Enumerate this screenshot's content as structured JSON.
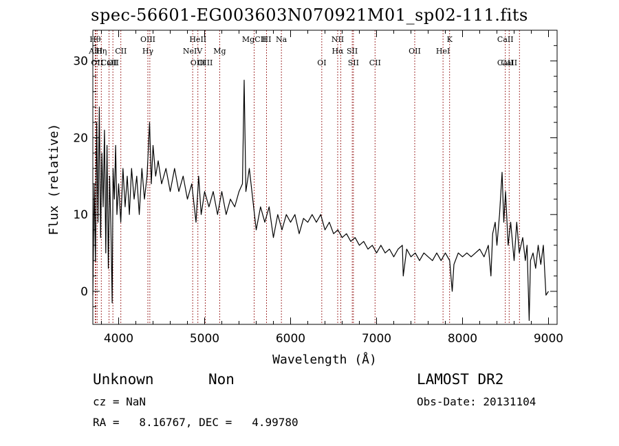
{
  "chart_data": {
    "type": "line",
    "title": "spec-56601-EG003603N070921M01_sp02-111.fits",
    "xlabel": "Wavelength (Å)",
    "ylabel": "Flux (relative)",
    "xlim": [
      3700,
      9100
    ],
    "ylim": [
      -4.3,
      34
    ],
    "x_ticks": [
      4000,
      5000,
      6000,
      7000,
      8000,
      9000
    ],
    "y_ticks": [
      0,
      10,
      20,
      30
    ],
    "line_color": "#000000",
    "marker_color": "#8b0000",
    "series": [
      {
        "values": [
          [
            3700,
            -0.5
          ],
          [
            3715,
            14
          ],
          [
            3730,
            4
          ],
          [
            3745,
            22
          ],
          [
            3760,
            9
          ],
          [
            3775,
            24
          ],
          [
            3790,
            7
          ],
          [
            3805,
            18
          ],
          [
            3820,
            11
          ],
          [
            3835,
            21
          ],
          [
            3850,
            5
          ],
          [
            3865,
            19
          ],
          [
            3880,
            3
          ],
          [
            3895,
            15
          ],
          [
            3910,
            8
          ],
          [
            3925,
            -1.5
          ],
          [
            3935,
            16
          ],
          [
            3950,
            12
          ],
          [
            3965,
            19
          ],
          [
            3980,
            10
          ],
          [
            4000,
            14
          ],
          [
            4025,
            9
          ],
          [
            4050,
            16
          ],
          [
            4075,
            11
          ],
          [
            4100,
            15
          ],
          [
            4125,
            10
          ],
          [
            4150,
            16
          ],
          [
            4180,
            12
          ],
          [
            4210,
            15
          ],
          [
            4240,
            10
          ],
          [
            4270,
            16
          ],
          [
            4300,
            12
          ],
          [
            4330,
            15
          ],
          [
            4360,
            22
          ],
          [
            4380,
            14
          ],
          [
            4400,
            19
          ],
          [
            4430,
            15
          ],
          [
            4460,
            17
          ],
          [
            4500,
            14
          ],
          [
            4550,
            16
          ],
          [
            4600,
            13
          ],
          [
            4650,
            16
          ],
          [
            4700,
            13
          ],
          [
            4750,
            15
          ],
          [
            4800,
            12
          ],
          [
            4850,
            14
          ],
          [
            4900,
            9
          ],
          [
            4930,
            15
          ],
          [
            4960,
            10
          ],
          [
            5000,
            13
          ],
          [
            5050,
            11
          ],
          [
            5100,
            13
          ],
          [
            5150,
            10
          ],
          [
            5200,
            13
          ],
          [
            5250,
            10
          ],
          [
            5300,
            12
          ],
          [
            5350,
            11
          ],
          [
            5400,
            13
          ],
          [
            5440,
            14
          ],
          [
            5460,
            27.5
          ],
          [
            5480,
            13
          ],
          [
            5520,
            16
          ],
          [
            5560,
            12
          ],
          [
            5600,
            8
          ],
          [
            5650,
            11
          ],
          [
            5700,
            9
          ],
          [
            5750,
            11
          ],
          [
            5800,
            7
          ],
          [
            5850,
            10
          ],
          [
            5900,
            8
          ],
          [
            5950,
            10
          ],
          [
            6000,
            9
          ],
          [
            6050,
            10
          ],
          [
            6100,
            7.5
          ],
          [
            6150,
            9.5
          ],
          [
            6200,
            9
          ],
          [
            6250,
            10
          ],
          [
            6300,
            9
          ],
          [
            6350,
            10
          ],
          [
            6400,
            8
          ],
          [
            6450,
            9
          ],
          [
            6500,
            7.5
          ],
          [
            6550,
            8
          ],
          [
            6600,
            7
          ],
          [
            6650,
            7.5
          ],
          [
            6700,
            6.5
          ],
          [
            6750,
            7
          ],
          [
            6800,
            6
          ],
          [
            6850,
            6.5
          ],
          [
            6900,
            5.5
          ],
          [
            6950,
            6
          ],
          [
            7000,
            5
          ],
          [
            7050,
            6
          ],
          [
            7100,
            5
          ],
          [
            7150,
            5.5
          ],
          [
            7200,
            4.5
          ],
          [
            7250,
            5.5
          ],
          [
            7300,
            6
          ],
          [
            7310,
            2
          ],
          [
            7350,
            5.5
          ],
          [
            7400,
            4.5
          ],
          [
            7450,
            5
          ],
          [
            7500,
            4
          ],
          [
            7550,
            5
          ],
          [
            7600,
            4.5
          ],
          [
            7650,
            4
          ],
          [
            7700,
            5
          ],
          [
            7750,
            4
          ],
          [
            7800,
            5
          ],
          [
            7850,
            4
          ],
          [
            7880,
            0
          ],
          [
            7900,
            3.5
          ],
          [
            7950,
            5
          ],
          [
            8000,
            4.5
          ],
          [
            8050,
            5
          ],
          [
            8100,
            4.5
          ],
          [
            8150,
            5
          ],
          [
            8200,
            5.5
          ],
          [
            8250,
            4.5
          ],
          [
            8300,
            6
          ],
          [
            8330,
            2
          ],
          [
            8350,
            7.5
          ],
          [
            8380,
            9
          ],
          [
            8400,
            6
          ],
          [
            8430,
            10
          ],
          [
            8460,
            15.5
          ],
          [
            8480,
            9
          ],
          [
            8500,
            13
          ],
          [
            8530,
            6
          ],
          [
            8560,
            9
          ],
          [
            8600,
            4
          ],
          [
            8630,
            9
          ],
          [
            8660,
            5
          ],
          [
            8700,
            7
          ],
          [
            8730,
            4
          ],
          [
            8750,
            6
          ],
          [
            8775,
            -3.8
          ],
          [
            8790,
            4
          ],
          [
            8820,
            5
          ],
          [
            8850,
            3
          ],
          [
            8880,
            6
          ],
          [
            8910,
            3.5
          ],
          [
            8940,
            6
          ],
          [
            8970,
            -0.5
          ],
          [
            9000,
            0
          ]
        ]
      }
    ],
    "line_markers": [
      {
        "wavelength": 3727,
        "top": "Hθ",
        "bottom": ""
      },
      {
        "wavelength": 3734,
        "top": "",
        "bottom": "AlII"
      },
      {
        "wavelength": 3750,
        "top": "",
        "bottom": "OII"
      },
      {
        "wavelength": 3798,
        "top": "",
        "bottom": "Hη"
      },
      {
        "wavelength": 3889,
        "top": "",
        "bottom": "CaII"
      },
      {
        "wavelength": 3933,
        "top": "",
        "bottom": "OII"
      },
      {
        "wavelength": 4026,
        "top": "",
        "bottom": "CII"
      },
      {
        "wavelength": 4340,
        "top": "OIII",
        "bottom": "Hγ"
      },
      {
        "wavelength": 4363,
        "top": "",
        "bottom": ""
      },
      {
        "wavelength": 4861,
        "top": "",
        "bottom": "NeIV"
      },
      {
        "wavelength": 4922,
        "top": "HeII",
        "bottom": "OIII"
      },
      {
        "wavelength": 5007,
        "top": "",
        "bottom": "OIII"
      },
      {
        "wavelength": 5175,
        "top": "",
        "bottom": "Mg"
      },
      {
        "wavelength": 5577,
        "top": "MgCII",
        "bottom": ""
      },
      {
        "wavelength": 5720,
        "top": "HI",
        "bottom": ""
      },
      {
        "wavelength": 5893,
        "top": "Na",
        "bottom": ""
      },
      {
        "wavelength": 6363,
        "top": "",
        "bottom": "OI"
      },
      {
        "wavelength": 6548,
        "top": "NII",
        "bottom": "Hα"
      },
      {
        "wavelength": 6583,
        "top": "",
        "bottom": ""
      },
      {
        "wavelength": 6717,
        "top": "",
        "bottom": "SII"
      },
      {
        "wavelength": 6731,
        "top": "",
        "bottom": "SII"
      },
      {
        "wavelength": 6982,
        "top": "",
        "bottom": "CII"
      },
      {
        "wavelength": 7444,
        "top": "",
        "bottom": "OII"
      },
      {
        "wavelength": 7773,
        "top": "",
        "bottom": "HeI"
      },
      {
        "wavelength": 7850,
        "top": "K",
        "bottom": ""
      },
      {
        "wavelength": 8498,
        "top": "CaII",
        "bottom": "CaII"
      },
      {
        "wavelength": 8542,
        "top": "",
        "bottom": "CaII"
      },
      {
        "wavelength": 8662,
        "top": "",
        "bottom": ""
      }
    ]
  },
  "info": {
    "class": "Unknown",
    "subclass": "Non",
    "survey": "LAMOST DR2",
    "cz": "cz = NaN",
    "obs_date": "Obs-Date: 20131104",
    "coords": "RA =   8.16767, DEC =   4.99780"
  }
}
